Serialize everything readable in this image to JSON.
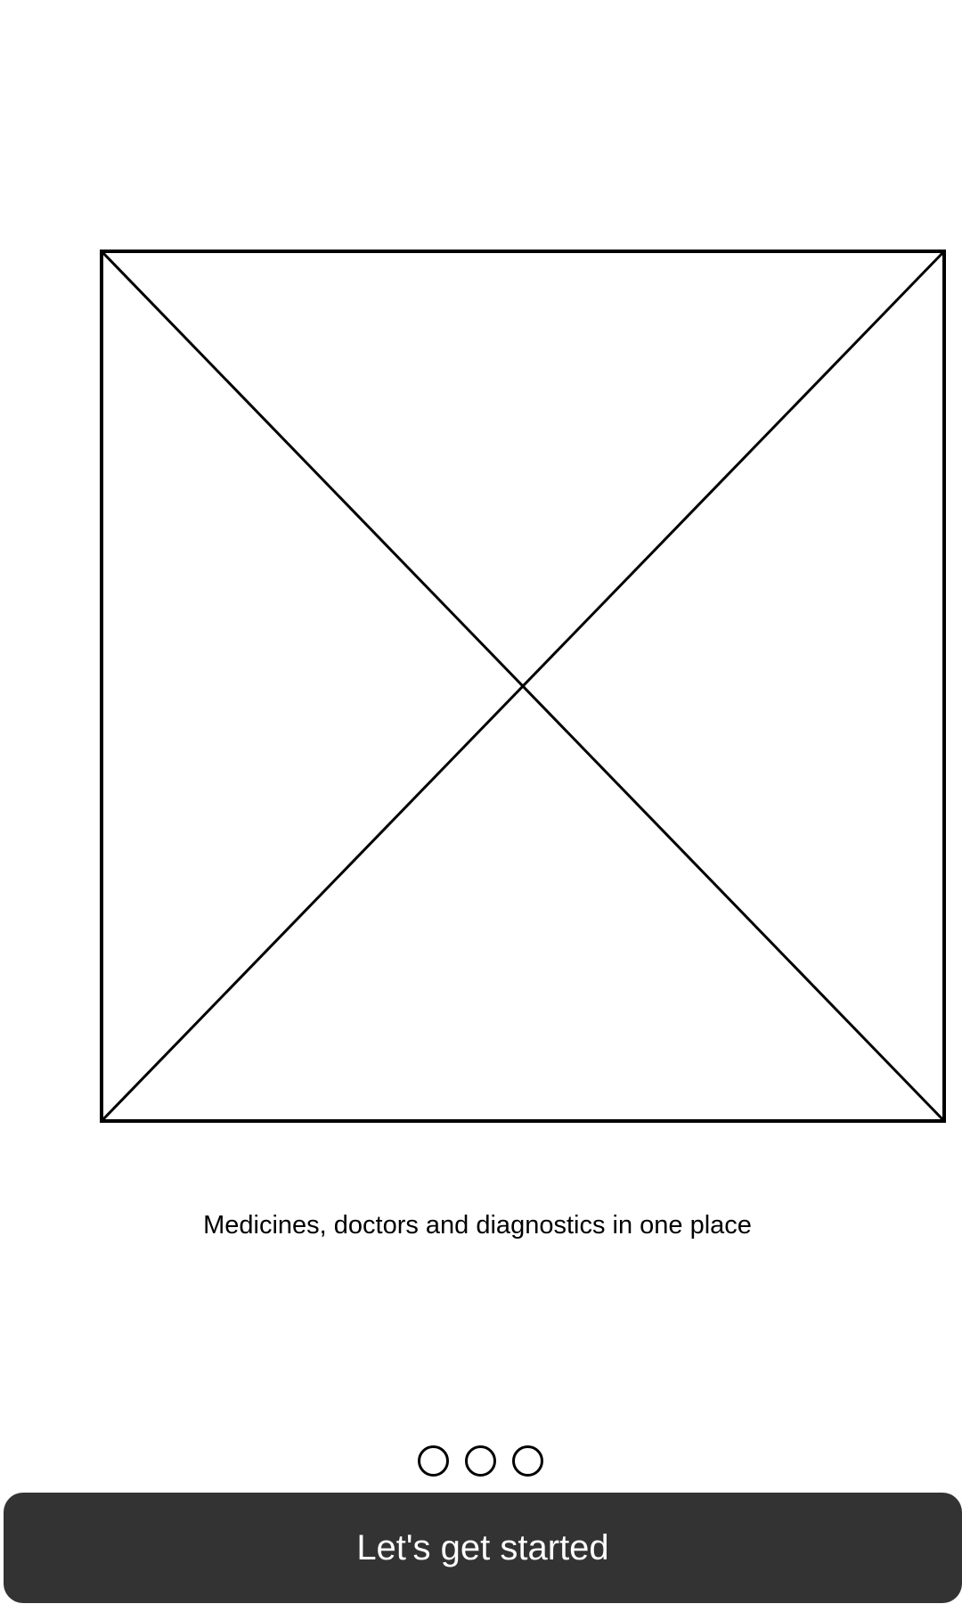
{
  "onboarding": {
    "hero_image": {
      "icon": "image-placeholder-icon"
    },
    "tagline": "Medicines, doctors and diagnostics in one place",
    "pager": {
      "total_pages": 3,
      "current_page": 1
    },
    "cta": {
      "label": "Let's get started"
    }
  },
  "colors": {
    "background": "#ffffff",
    "button_background": "#333333",
    "button_text": "#ffffff",
    "stroke": "#000000"
  }
}
